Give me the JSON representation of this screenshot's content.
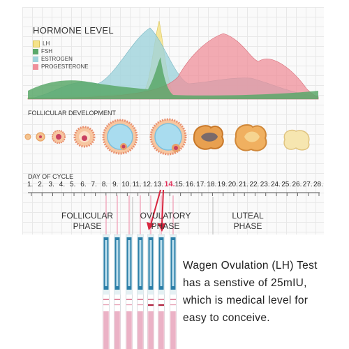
{
  "hormone": {
    "title": "HORMONE LEVEL",
    "legend": [
      {
        "label": "LH",
        "color": "#f5e38a"
      },
      {
        "label": "FSH",
        "color": "#5aa86a"
      },
      {
        "label": "ESTROGEN",
        "color": "#9fd3dc"
      },
      {
        "label": "PROGESTERONE",
        "color": "#ef8f9a"
      }
    ]
  },
  "follicular_development": {
    "title": "FOLLICULAR DEVELOPMENT"
  },
  "cycle": {
    "title": "DAY OF CYCLE",
    "days": [
      "1.",
      "2.",
      "3.",
      "4.",
      "5.",
      "6.",
      "7.",
      "8.",
      "9.",
      "10.",
      "11.",
      "12.",
      "13.",
      "14.",
      "15.",
      "16.",
      "17.",
      "18.",
      "19.",
      "20.",
      "21.",
      "22.",
      "23.",
      "24.",
      "25.",
      "26.",
      "27.",
      "28."
    ],
    "highlight": "14."
  },
  "phases": {
    "follicular": [
      "FOLLICULAR",
      "PHASE"
    ],
    "ovulatory": [
      "OVULATORY",
      "PHASE"
    ],
    "luteal": [
      "LUTEAL",
      "PHASE"
    ]
  },
  "description": [
    "Wagen Ovulation (LH) Test",
    "has a senstive of 25mIU,",
    "which is medical level for",
    "easy to conceive."
  ],
  "colors": {
    "accent": "#e0305a",
    "arrow": "#d8253e"
  }
}
